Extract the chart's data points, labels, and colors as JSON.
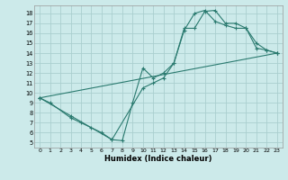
{
  "title": "",
  "xlabel": "Humidex (Indice chaleur)",
  "bg_color": "#cceaea",
  "grid_color": "#aacfcf",
  "line_color": "#2a7a6f",
  "xlim": [
    -0.5,
    23.5
  ],
  "ylim": [
    4.5,
    18.8
  ],
  "xticks": [
    0,
    1,
    2,
    3,
    4,
    5,
    6,
    7,
    8,
    9,
    10,
    11,
    12,
    13,
    14,
    15,
    16,
    17,
    18,
    19,
    20,
    21,
    22,
    23
  ],
  "yticks": [
    5,
    6,
    7,
    8,
    9,
    10,
    11,
    12,
    13,
    14,
    15,
    16,
    17,
    18
  ],
  "line1_x": [
    0,
    1,
    3,
    4,
    5,
    6,
    7,
    8,
    9,
    10,
    11,
    12,
    13,
    14,
    15,
    16,
    17,
    18,
    19,
    20,
    21,
    22,
    23
  ],
  "line1_y": [
    9.5,
    9.0,
    7.5,
    7.0,
    6.5,
    6.0,
    5.3,
    5.2,
    9.0,
    12.5,
    11.5,
    12.0,
    13.0,
    16.5,
    16.5,
    18.2,
    18.3,
    17.0,
    17.0,
    16.5,
    15.0,
    14.3,
    14.0
  ],
  "line2_x": [
    0,
    3,
    7,
    10,
    11,
    12,
    13,
    14,
    15,
    16,
    17,
    18,
    19,
    20,
    21,
    22,
    23
  ],
  "line2_y": [
    9.5,
    7.7,
    5.3,
    10.5,
    11.0,
    11.5,
    13.0,
    16.3,
    18.0,
    18.3,
    17.2,
    16.8,
    16.5,
    16.5,
    14.5,
    14.3,
    14.0
  ],
  "line3_x": [
    0,
    23
  ],
  "line3_y": [
    9.5,
    14.0
  ]
}
